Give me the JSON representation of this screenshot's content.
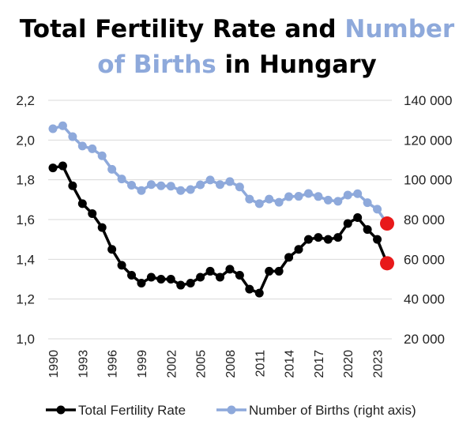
{
  "chart_data": {
    "type": "line",
    "title_parts": [
      {
        "text": "Total Fertility Rate and ",
        "color": "#000000"
      },
      {
        "text": "Number",
        "color": "#8EA9DB"
      },
      {
        "text": "of Births",
        "color": "#8EA9DB"
      },
      {
        "text": " in Hungary",
        "color": "#000000"
      }
    ],
    "x": [
      1990,
      1991,
      1992,
      1993,
      1994,
      1995,
      1996,
      1997,
      1998,
      1999,
      2000,
      2001,
      2002,
      2003,
      2004,
      2005,
      2006,
      2007,
      2008,
      2009,
      2010,
      2011,
      2012,
      2013,
      2014,
      2015,
      2016,
      2017,
      2018,
      2019,
      2020,
      2021,
      2022,
      2023,
      2024
    ],
    "x_tick_labels": [
      "1990",
      "1993",
      "1996",
      "1999",
      "2002",
      "2005",
      "2008",
      "2011",
      "2014",
      "2017",
      "2020",
      "2023"
    ],
    "x_tick_values": [
      1990,
      1993,
      1996,
      1999,
      2002,
      2005,
      2008,
      2011,
      2014,
      2017,
      2020,
      2023
    ],
    "y_left": {
      "min": 1.0,
      "max": 2.2,
      "step": 0.2,
      "tick_labels": [
        "1,0",
        "1,2",
        "1,4",
        "1,6",
        "1,8",
        "2,0",
        "2,2"
      ]
    },
    "y_right": {
      "min": 20000,
      "max": 140000,
      "step": 20000,
      "tick_labels": [
        "20 000",
        "40 000",
        "60 000",
        "80 000",
        "100 000",
        "120 000",
        "140 000"
      ]
    },
    "series": [
      {
        "name": "Total Fertility Rate",
        "axis": "left",
        "color": "#000000",
        "values": [
          1.86,
          1.87,
          1.77,
          1.68,
          1.63,
          1.56,
          1.45,
          1.37,
          1.32,
          1.28,
          1.31,
          1.3,
          1.3,
          1.27,
          1.28,
          1.31,
          1.34,
          1.31,
          1.35,
          1.32,
          1.25,
          1.23,
          1.34,
          1.34,
          1.41,
          1.45,
          1.5,
          1.51,
          1.5,
          1.51,
          1.58,
          1.61,
          1.55,
          1.5,
          1.38
        ]
      },
      {
        "name": "Number of Births (right axis)",
        "axis": "right",
        "color": "#8EA9DB",
        "values": [
          125700,
          127200,
          121700,
          117000,
          115600,
          112100,
          105300,
          100400,
          97300,
          94600,
          97600,
          97000,
          96800,
          94600,
          95100,
          97500,
          99900,
          97600,
          99100,
          96400,
          90300,
          88000,
          90300,
          88700,
          91500,
          91700,
          93100,
          91600,
          89800,
          89200,
          92300,
          93000,
          88500,
          85200,
          78000
        ]
      }
    ],
    "highlight_color": "#E8191A",
    "legend_position": "bottom"
  }
}
